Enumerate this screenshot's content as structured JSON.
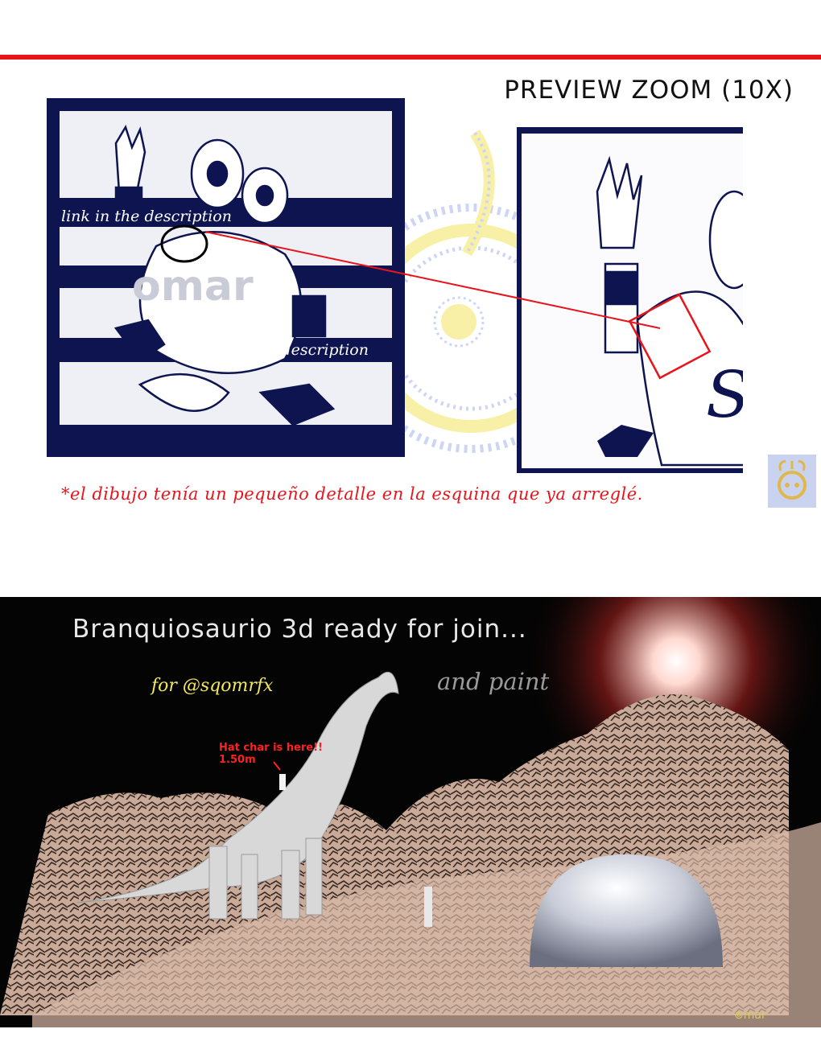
{
  "header": {
    "zoom_title": "PREVIEW ZOOM (10X)"
  },
  "preview": {
    "link_label_1": "link in the description",
    "link_label_2": "link in the description",
    "watermark": "omar"
  },
  "caption": "*el dibujo tenía un pequeño detalle en la esquina que ya arreglé.",
  "scene": {
    "title": "Branquiosaurio 3d ready for join...",
    "for_label": "for @sqomrfx",
    "paint_label": "and paint",
    "hat_note_line1": "Hat char is here!!",
    "hat_note_line2": "1.50m",
    "logo_text": "mar"
  },
  "colors": {
    "accent_red": "#e8141c",
    "navy": "#0d1450",
    "yellow": "#f3e85a"
  }
}
